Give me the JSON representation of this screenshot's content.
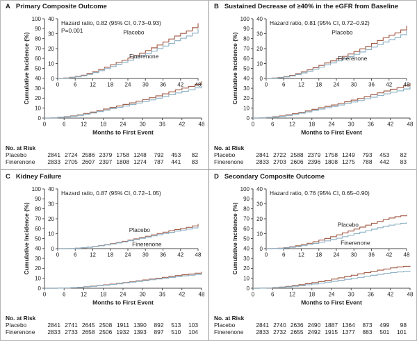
{
  "figure": {
    "ylabel": "Cumulative Incidence (%)",
    "xlabel": "Months to First Event",
    "risk_header": "No. at Risk",
    "colors": {
      "placebo": "#a5604c",
      "finerenone": "#8fb2c6",
      "axis": "#4a4a4a",
      "text": "#1f1f1f",
      "divider": "#8f8f8f"
    }
  },
  "chart_data": [
    {
      "type": "line",
      "panel": "A",
      "title": "Primary Composite Outcome",
      "annotation": [
        "Hazard ratio, 0.82 (95% CI, 0.73–0.93)",
        "P=0.001"
      ],
      "xlabel": "Months to First Event",
      "ylabel": "Cumulative Incidence (%)",
      "xlim": [
        0,
        48
      ],
      "x_ticks": [
        0,
        6,
        12,
        18,
        24,
        30,
        36,
        42,
        48
      ],
      "main_ylim": [
        0,
        100
      ],
      "main_y_ticks": [
        0,
        10,
        20,
        30,
        40,
        50,
        60,
        70,
        80,
        90,
        100
      ],
      "inset_ylim": [
        0,
        40
      ],
      "inset_y_ticks": [
        0,
        10,
        20,
        30,
        40
      ],
      "months": [
        0,
        2,
        4,
        6,
        8,
        10,
        12,
        14,
        16,
        18,
        20,
        22,
        24,
        26,
        28,
        30,
        32,
        34,
        36,
        38,
        40,
        42,
        44,
        46,
        48
      ],
      "series": [
        {
          "name": "Placebo",
          "color": "placebo",
          "values": [
            0,
            0.3,
            0.8,
            1.4,
            2.2,
            3.3,
            4.6,
            6.0,
            7.5,
            9.1,
            10.8,
            12.2,
            13.7,
            15.3,
            17.0,
            18.7,
            20.5,
            22.4,
            24.4,
            26.4,
            28.4,
            30.2,
            31.8,
            34.0,
            37.0
          ],
          "label_at": {
            "month": 26,
            "value": 31
          }
        },
        {
          "name": "Finerenone",
          "color": "finerenone",
          "values": [
            0,
            0.2,
            0.6,
            1.1,
            1.8,
            2.7,
            3.9,
            5.2,
            6.6,
            8.0,
            9.5,
            10.8,
            12.2,
            13.7,
            15.2,
            16.7,
            18.3,
            20.0,
            21.7,
            23.5,
            25.3,
            26.9,
            28.4,
            30.4,
            33.2
          ],
          "label_at": {
            "month": 29.5,
            "value": 15
          }
        }
      ],
      "risk_table": {
        "rows": [
          {
            "label": "Placebo",
            "counts": [
              2841,
              2724,
              2586,
              2379,
              1758,
              1248,
              792,
              453,
              82
            ]
          },
          {
            "label": "Finerenone",
            "counts": [
              2833,
              2705,
              2607,
              2397,
              1808,
              1274,
              787,
              441,
              83
            ]
          }
        ]
      }
    },
    {
      "type": "line",
      "panel": "B",
      "title": "Sustained Decrease of ≥40% in the eGFR from Baseline",
      "annotation": [
        "Hazard ratio, 0.81 (95% CI, 0.72–0.92)"
      ],
      "xlabel": "Months to First Event",
      "ylabel": "Cumulative Incidence (%)",
      "xlim": [
        0,
        48
      ],
      "x_ticks": [
        0,
        6,
        12,
        18,
        24,
        30,
        36,
        42,
        48
      ],
      "main_ylim": [
        0,
        100
      ],
      "main_y_ticks": [
        0,
        10,
        20,
        30,
        40,
        50,
        60,
        70,
        80,
        90,
        100
      ],
      "inset_ylim": [
        0,
        40
      ],
      "inset_y_ticks": [
        0,
        10,
        20,
        30,
        40
      ],
      "months": [
        0,
        2,
        4,
        6,
        8,
        10,
        12,
        14,
        16,
        18,
        20,
        22,
        24,
        26,
        28,
        30,
        32,
        34,
        36,
        38,
        40,
        42,
        44,
        46,
        48
      ],
      "series": [
        {
          "name": "Placebo",
          "color": "placebo",
          "values": [
            0,
            0.3,
            0.7,
            1.3,
            2.1,
            3.2,
            4.4,
            5.8,
            7.2,
            8.8,
            10.4,
            11.8,
            13.2,
            14.8,
            16.4,
            18.1,
            19.8,
            21.6,
            23.5,
            25.4,
            27.3,
            29.0,
            30.5,
            32.5,
            35.3
          ],
          "label_at": {
            "month": 26,
            "value": 31
          }
        },
        {
          "name": "Finerenone",
          "color": "finerenone",
          "values": [
            0,
            0.2,
            0.5,
            1.0,
            1.7,
            2.6,
            3.7,
            4.9,
            6.2,
            7.6,
            9.1,
            10.4,
            11.8,
            13.2,
            14.7,
            16.2,
            17.7,
            19.3,
            21.0,
            22.7,
            24.4,
            26.0,
            27.4,
            29.3,
            32.0
          ],
          "label_at": {
            "month": 29.5,
            "value": 13.5
          }
        }
      ],
      "risk_table": {
        "rows": [
          {
            "label": "Placebo",
            "counts": [
              2841,
              2722,
              2588,
              2379,
              1758,
              1249,
              793,
              453,
              82
            ]
          },
          {
            "label": "Finerenone",
            "counts": [
              2833,
              2703,
              2606,
              2396,
              1808,
              1275,
              788,
              442,
              83
            ]
          }
        ]
      }
    },
    {
      "type": "line",
      "panel": "C",
      "title": "Kidney Failure",
      "annotation": [
        "Hazard ratio, 0.87 (95% CI, 0.72–1.05)"
      ],
      "xlabel": "Months to First Event",
      "ylabel": "Cumulative Incidence (%)",
      "xlim": [
        0,
        48
      ],
      "x_ticks": [
        0,
        6,
        12,
        18,
        24,
        30,
        36,
        42,
        48
      ],
      "main_ylim": [
        0,
        100
      ],
      "main_y_ticks": [
        0,
        10,
        20,
        30,
        40,
        50,
        60,
        70,
        80,
        90,
        100
      ],
      "inset_ylim": [
        0,
        40
      ],
      "inset_y_ticks": [
        0,
        10,
        20,
        30,
        40
      ],
      "months": [
        0,
        2,
        4,
        6,
        8,
        10,
        12,
        14,
        16,
        18,
        20,
        22,
        24,
        26,
        28,
        30,
        32,
        34,
        36,
        38,
        40,
        42,
        44,
        46,
        48
      ],
      "series": [
        {
          "name": "Placebo",
          "color": "placebo",
          "values": [
            0,
            0,
            0.1,
            0.3,
            0.6,
            1.0,
            1.5,
            2.1,
            2.7,
            3.4,
            4.1,
            4.9,
            5.7,
            6.5,
            7.4,
            8.3,
            9.2,
            10.1,
            11.0,
            11.9,
            12.8,
            13.6,
            14.3,
            15.2,
            16.5
          ],
          "label_at": {
            "month": 28,
            "value": 12.5
          }
        },
        {
          "name": "Finerenone",
          "color": "finerenone",
          "values": [
            0,
            0,
            0.1,
            0.3,
            0.6,
            0.9,
            1.4,
            1.9,
            2.5,
            3.1,
            3.8,
            4.5,
            5.3,
            6.1,
            6.9,
            7.7,
            8.5,
            9.3,
            10.1,
            10.9,
            11.7,
            12.4,
            13.1,
            13.9,
            15.0
          ],
          "label_at": {
            "month": 30.5,
            "value": 3
          }
        }
      ],
      "risk_table": {
        "rows": [
          {
            "label": "Placebo",
            "counts": [
              2841,
              2741,
              2645,
              2508,
              1911,
              1390,
              892,
              513,
              103
            ]
          },
          {
            "label": "Finerenone",
            "counts": [
              2833,
              2733,
              2658,
              2506,
              1932,
              1393,
              897,
              510,
              104
            ]
          }
        ]
      }
    },
    {
      "type": "line",
      "panel": "D",
      "title": "Secondary Composite Outcome",
      "annotation": [
        "Hazard ratio, 0.76 (95% CI, 0.65–0.90)"
      ],
      "xlabel": "Months to First Event",
      "ylabel": "Cumulative Incidence (%)",
      "xlim": [
        0,
        48
      ],
      "x_ticks": [
        0,
        6,
        12,
        18,
        24,
        30,
        36,
        42,
        48
      ],
      "main_ylim": [
        0,
        100
      ],
      "main_y_ticks": [
        0,
        10,
        20,
        30,
        40,
        50,
        60,
        70,
        80,
        90,
        100
      ],
      "inset_ylim": [
        0,
        40
      ],
      "inset_y_ticks": [
        0,
        10,
        20,
        30,
        40
      ],
      "months": [
        0,
        2,
        4,
        6,
        8,
        10,
        12,
        14,
        16,
        18,
        20,
        22,
        24,
        26,
        28,
        30,
        32,
        34,
        36,
        38,
        40,
        42,
        44,
        46,
        48
      ],
      "series": [
        {
          "name": "Placebo",
          "color": "placebo",
          "values": [
            0,
            0.1,
            0.3,
            0.7,
            1.2,
            1.9,
            2.7,
            3.6,
            4.6,
            5.7,
            6.8,
            8.0,
            9.2,
            10.5,
            11.8,
            13.1,
            14.4,
            15.7,
            17.0,
            18.2,
            19.4,
            20.5,
            21.4,
            22.0,
            22.5
          ],
          "label_at": {
            "month": 28,
            "value": 16
          }
        },
        {
          "name": "Finerenone",
          "color": "finerenone",
          "values": [
            0,
            0.1,
            0.2,
            0.5,
            0.9,
            1.4,
            2.0,
            2.7,
            3.5,
            4.3,
            5.2,
            6.1,
            7.0,
            8.0,
            9.0,
            10.0,
            11.0,
            12.0,
            13.0,
            14.0,
            14.9,
            15.7,
            16.4,
            17.0,
            17.6
          ],
          "label_at": {
            "month": 30.5,
            "value": 4
          }
        }
      ],
      "risk_table": {
        "rows": [
          {
            "label": "Placebo",
            "counts": [
              2841,
              2740,
              2636,
              2490,
              1887,
              1364,
              873,
              499,
              98
            ]
          },
          {
            "label": "Finerenone",
            "counts": [
              2833,
              2732,
              2655,
              2492,
              1915,
              1377,
              883,
              501,
              101
            ]
          }
        ]
      }
    }
  ]
}
